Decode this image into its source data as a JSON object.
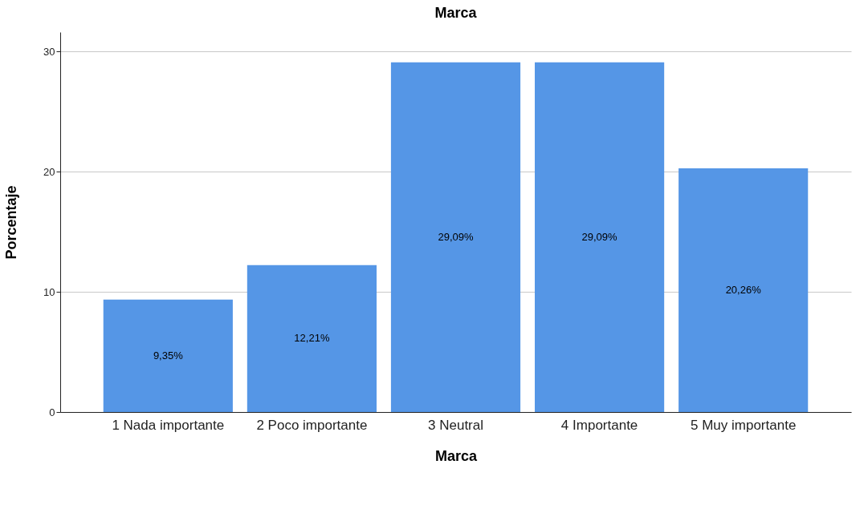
{
  "chart_data": {
    "type": "bar",
    "title": "Marca",
    "xlabel": "Marca",
    "ylabel": "Porcentaje",
    "categories": [
      "1 Nada importante",
      "2 Poco importante",
      "3 Neutral",
      "4 Importante",
      "5 Muy importante"
    ],
    "values": [
      9.35,
      12.21,
      29.09,
      29.09,
      20.26
    ],
    "value_labels": [
      "9,35%",
      "12,21%",
      "29,09%",
      "29,09%",
      "20,26%"
    ],
    "color": "#5596e6",
    "ylim": [
      0,
      31.6
    ],
    "yticks": [
      0,
      10,
      20,
      30
    ],
    "grid": "y"
  }
}
